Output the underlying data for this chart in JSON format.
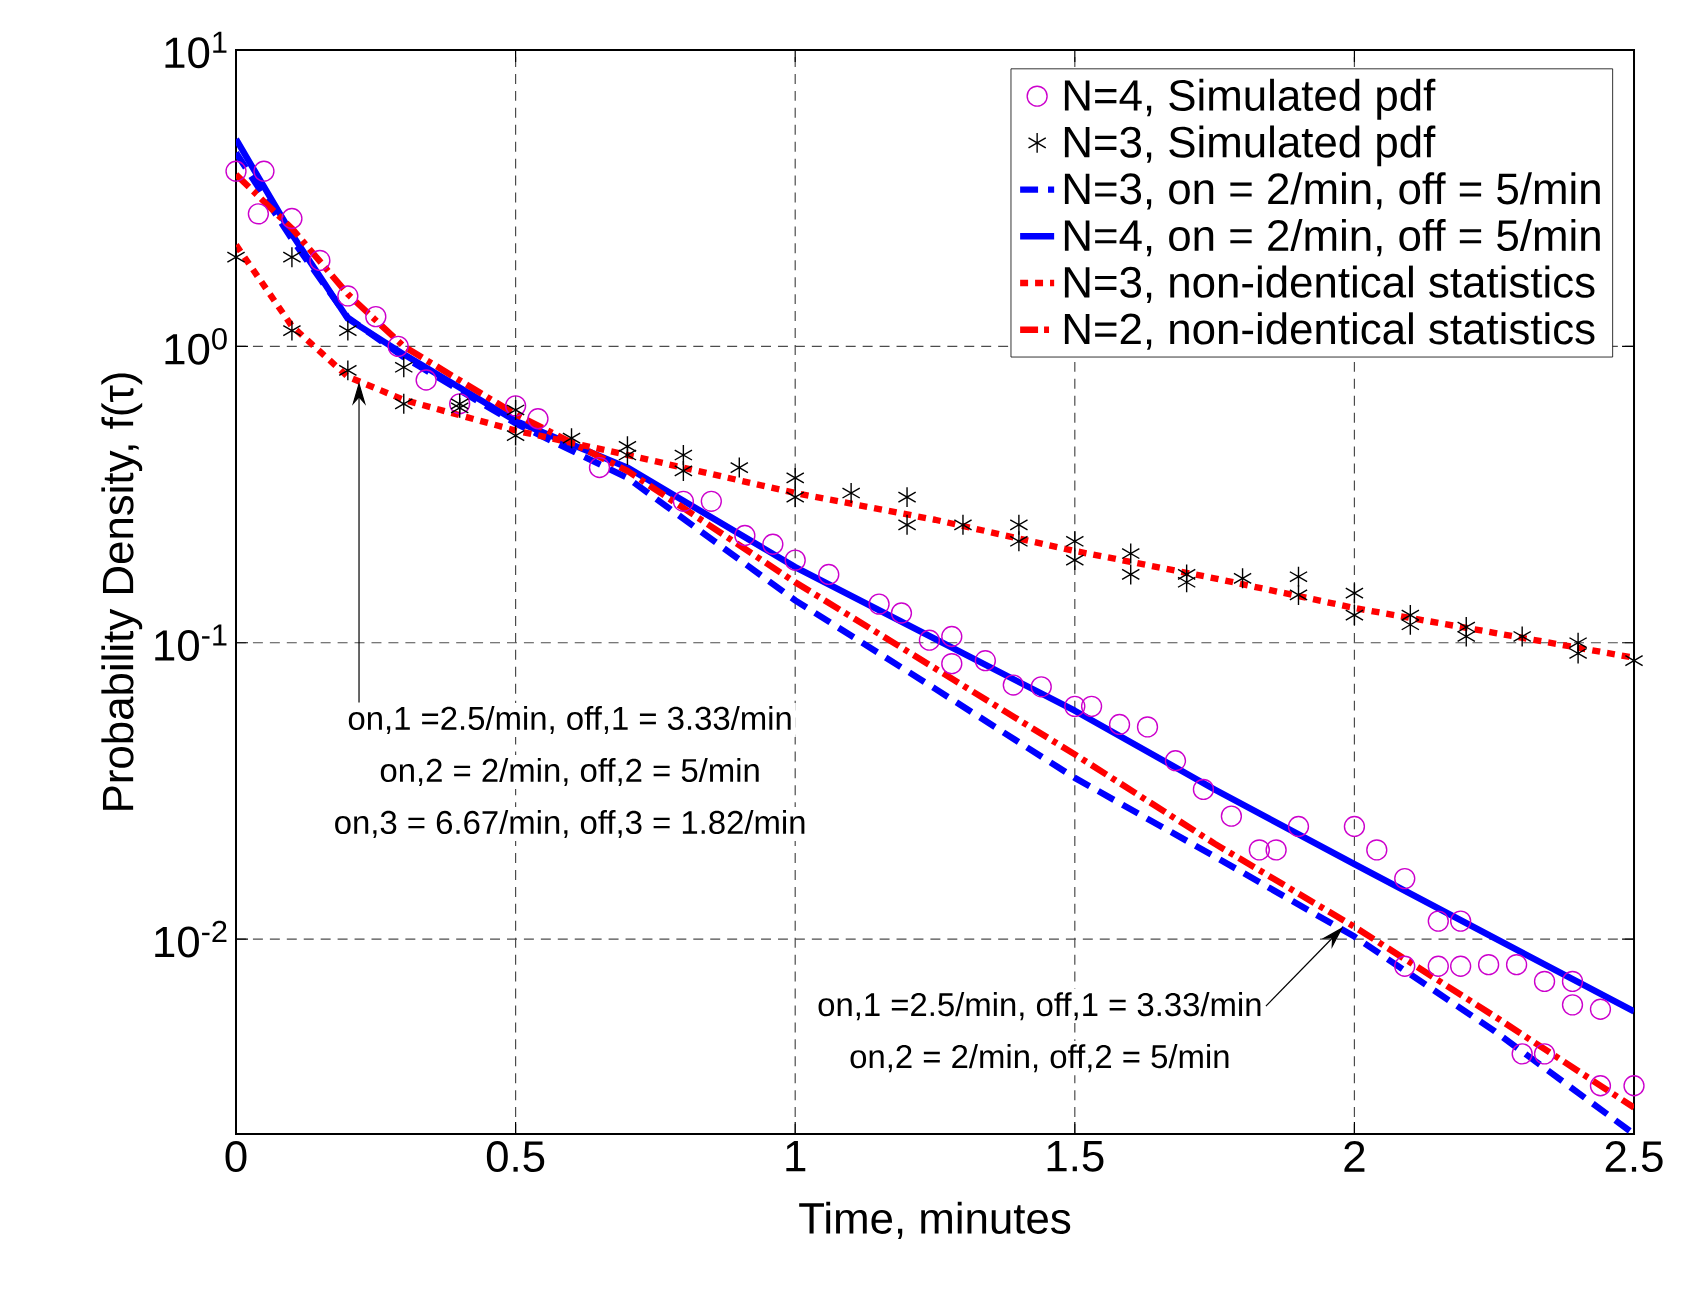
{
  "chart_data": {
    "type": "line",
    "xlabel": "Time, minutes",
    "ylabel": "Probability Density, f(τ)",
    "xlim": [
      0,
      2.5
    ],
    "ylim": [
      0.0022,
      10
    ],
    "log": "y",
    "grid": true,
    "legend": "top right",
    "xticks": [
      0,
      0.5,
      1,
      1.5,
      2,
      2.5
    ],
    "yticks": [
      {
        "value": 0.01,
        "label": "10$^{-2}$"
      },
      {
        "value": 0.1,
        "label": "10$^{-1}$"
      },
      {
        "value": 1,
        "label": "10$^{0}$"
      },
      {
        "value": 10,
        "label": "10$^{1}$"
      }
    ],
    "series": [
      {
        "name": "N=4, Simulated pdf",
        "type": "scatter",
        "marker": "circle",
        "color": "#cc00cc",
        "x": [
          0,
          0.05,
          0.04,
          0.1,
          0.15,
          0.2,
          0.25,
          0.29,
          0.34,
          0.4,
          0.5,
          0.54,
          0.65,
          0.8,
          0.85,
          0.91,
          0.96,
          1.0,
          1.06,
          1.15,
          1.19,
          1.24,
          1.28,
          1.28,
          1.34,
          1.39,
          1.44,
          1.5,
          1.53,
          1.58,
          1.63,
          1.68,
          1.73,
          1.78,
          1.83,
          1.86,
          1.9,
          2.0,
          2.04,
          2.09,
          2.15,
          2.19,
          2.09,
          2.15,
          2.19,
          2.24,
          2.29,
          2.34,
          2.39,
          2.39,
          2.44,
          2.3,
          2.34,
          2.44,
          2.5
        ],
        "values": [
          3.9,
          3.9,
          2.8,
          2.7,
          1.95,
          1.48,
          1.26,
          1.0,
          0.77,
          0.64,
          0.63,
          0.57,
          0.39,
          0.3,
          0.3,
          0.23,
          0.215,
          0.19,
          0.17,
          0.135,
          0.126,
          0.102,
          0.105,
          0.085,
          0.087,
          0.072,
          0.071,
          0.061,
          0.061,
          0.053,
          0.052,
          0.04,
          0.032,
          0.026,
          0.02,
          0.02,
          0.024,
          0.024,
          0.02,
          0.016,
          0.0115,
          0.0115,
          0.0081,
          0.0081,
          0.0081,
          0.0082,
          0.0082,
          0.0072,
          0.0072,
          0.006,
          0.0058,
          0.0041,
          0.0041,
          0.0032,
          0.0032
        ]
      },
      {
        "name": "N=3, Simulated pdf",
        "type": "scatter",
        "marker": "cross",
        "color": "#000000",
        "x": [
          0,
          0.1,
          0.1,
          0.2,
          0.2,
          0.3,
          0.3,
          0.4,
          0.4,
          0.5,
          0.5,
          0.6,
          0.7,
          0.7,
          0.8,
          0.8,
          0.9,
          1.0,
          1.0,
          1.1,
          1.2,
          1.2,
          1.3,
          1.4,
          1.4,
          1.5,
          1.5,
          1.6,
          1.6,
          1.7,
          1.7,
          1.8,
          1.9,
          1.9,
          2.0,
          2.0,
          2.1,
          2.1,
          2.2,
          2.2,
          2.3,
          2.4,
          2.4,
          2.5
        ],
        "values": [
          2.0,
          2.0,
          1.13,
          1.13,
          0.83,
          0.85,
          0.64,
          0.64,
          0.62,
          0.61,
          0.5,
          0.49,
          0.46,
          0.43,
          0.43,
          0.38,
          0.39,
          0.36,
          0.31,
          0.32,
          0.31,
          0.25,
          0.25,
          0.25,
          0.22,
          0.22,
          0.19,
          0.2,
          0.17,
          0.17,
          0.16,
          0.165,
          0.167,
          0.145,
          0.147,
          0.124,
          0.124,
          0.115,
          0.113,
          0.105,
          0.105,
          0.1,
          0.092,
          0.087
        ]
      },
      {
        "name": "N=3, on = 2/min, off = 5/min",
        "line_style": "dashed",
        "color": "#0000ff",
        "x": [
          0,
          0.1,
          0.2,
          0.3,
          0.5,
          0.7,
          1.0,
          1.25,
          1.5,
          1.75,
          2.0,
          2.25,
          2.5
        ],
        "values": [
          4.5,
          2.3,
          1.25,
          0.92,
          0.55,
          0.36,
          0.139,
          0.07,
          0.035,
          0.019,
          0.0102,
          0.0049,
          0.0022
        ]
      },
      {
        "name": "N=4, on = 2/min, off = 5/min",
        "line_style": "solid",
        "color": "#0000ff",
        "x": [
          0,
          0.1,
          0.2,
          0.3,
          0.5,
          0.7,
          1.0,
          1.25,
          1.5,
          1.75,
          2.0,
          2.25,
          2.5
        ],
        "values": [
          5.0,
          2.39,
          1.24,
          0.94,
          0.56,
          0.39,
          0.18,
          0.103,
          0.059,
          0.032,
          0.0179,
          0.0101,
          0.0057
        ]
      },
      {
        "name": "N=3, non-identical statistics",
        "line_style": "dotted",
        "color": "#ff0000",
        "x": [
          0,
          0.1,
          0.2,
          0.3,
          0.5,
          0.7,
          1.0,
          1.25,
          1.5,
          1.75,
          2.0,
          2.25,
          2.5
        ],
        "values": [
          2.2,
          1.17,
          0.79,
          0.66,
          0.52,
          0.43,
          0.32,
          0.26,
          0.204,
          0.165,
          0.131,
          0.108,
          0.089
        ]
      },
      {
        "name": "N=2, non-identical statistics",
        "line_style": "dashdot",
        "color": "#ff0000",
        "x": [
          0,
          0.1,
          0.2,
          0.3,
          0.5,
          0.7,
          1.0,
          1.25,
          1.5,
          1.75,
          2.0,
          2.25,
          2.5
        ],
        "values": [
          3.8,
          2.5,
          1.5,
          1.0,
          0.59,
          0.38,
          0.16,
          0.082,
          0.042,
          0.021,
          0.011,
          0.0055,
          0.0027
        ]
      }
    ],
    "annotations": [
      {
        "text": "on,1 =2.5/min, off,1 = 3.33/min",
        "x": 0.22,
        "y": 0.76
      },
      "on,2 = 2/min, off,2 = 5/min",
      "on,3 = 6.67/min, off,3 = 1.82/min",
      {
        "text": "on,1 =2.5/min, off,1 = 3.33/min",
        "x": 1.98,
        "y": 0.011
      },
      "on,2 = 2/min, off,2 = 5/min"
    ]
  }
}
